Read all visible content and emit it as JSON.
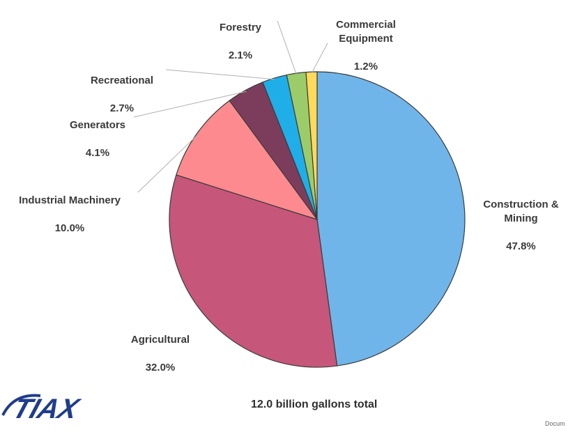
{
  "chart_data": {
    "type": "pie",
    "slices": [
      {
        "name": "Construction &\nMining",
        "value": 47.8,
        "label": "47.8%",
        "color": "#6fb5e9"
      },
      {
        "name": "Agricultural",
        "value": 32.0,
        "label": "32.0%",
        "color": "#c7567b"
      },
      {
        "name": "Industrial Machinery",
        "value": 10.0,
        "label": "10.0%",
        "color": "#fd8a8e"
      },
      {
        "name": "Generators",
        "value": 4.1,
        "label": "4.1%",
        "color": "#7c3d5c"
      },
      {
        "name": "Recreational",
        "value": 2.7,
        "label": "2.7%",
        "color": "#1faee8"
      },
      {
        "name": "Forestry",
        "value": 2.1,
        "label": "2.1%",
        "color": "#9ccc6a"
      },
      {
        "name": "Commercial\nEquipment",
        "value": 1.2,
        "label": "1.2%",
        "color": "#ffd95a"
      }
    ],
    "note": "12.0 billion gallons total"
  },
  "logo_text": "TIAX",
  "footer_note": "Docum"
}
